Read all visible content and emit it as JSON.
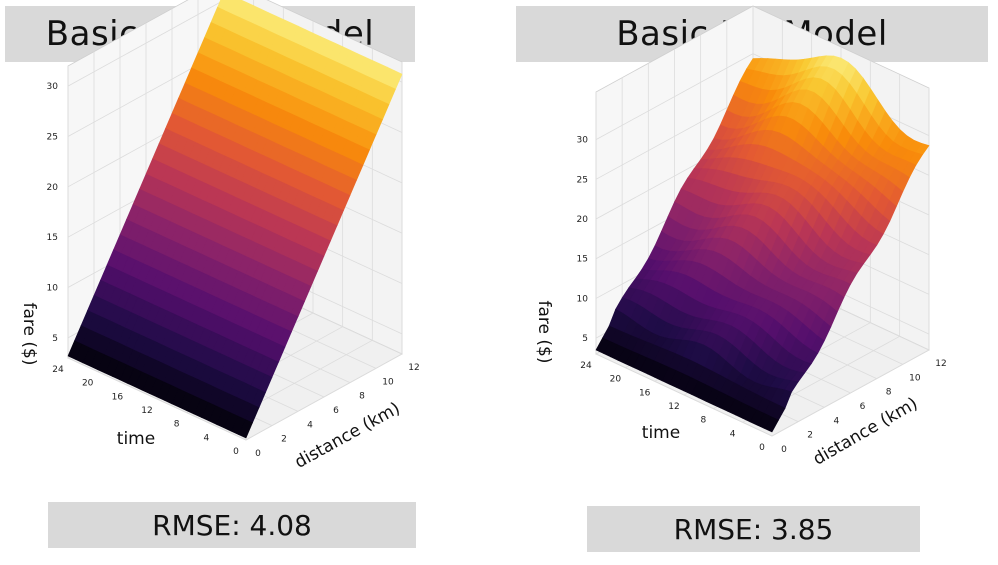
{
  "chart_data": [
    {
      "type": "surface3d",
      "title": "Basic Linear Model",
      "rmse_label": "RMSE: 4.08",
      "xlabel": "distance (km)",
      "ylabel": "time",
      "zlabel": "fare ($)",
      "x_ticks": [
        "0",
        "2",
        "4",
        "6",
        "8",
        "10",
        "12"
      ],
      "y_ticks": [
        "0",
        "4",
        "8",
        "12",
        "16",
        "20",
        "24"
      ],
      "z_ticks": [
        "5",
        "10",
        "15",
        "20",
        "25",
        "30"
      ],
      "xlim": [
        0,
        12
      ],
      "ylim": [
        0,
        24
      ],
      "zlim": [
        3,
        32
      ],
      "surface": {
        "model": "linear",
        "fare_at_0km": 3.2,
        "fare_per_km": 2.3,
        "fare_per_hour": 0.0
      },
      "colormap": "inferno"
    },
    {
      "type": "surface3d",
      "title": "Basic NN Model",
      "rmse_label": "RMSE: 3.85",
      "xlabel": "distance (km)",
      "ylabel": "time",
      "zlabel": "fare ($)",
      "x_ticks": [
        "0",
        "2",
        "4",
        "6",
        "8",
        "10",
        "12"
      ],
      "y_ticks": [
        "0",
        "4",
        "8",
        "12",
        "16",
        "20",
        "24"
      ],
      "z_ticks": [
        "5",
        "10",
        "15",
        "20",
        "25",
        "30"
      ],
      "xlim": [
        0,
        12
      ],
      "ylim": [
        0,
        24
      ],
      "zlim": [
        3,
        36
      ],
      "surface": {
        "model": "neural-net",
        "fare_at_0km": 3.5,
        "fare_at_12km_midday": 34.5,
        "fare_at_12km_night": 28.5,
        "fare_per_km": 2.5
      },
      "colormap": "inferno"
    }
  ]
}
